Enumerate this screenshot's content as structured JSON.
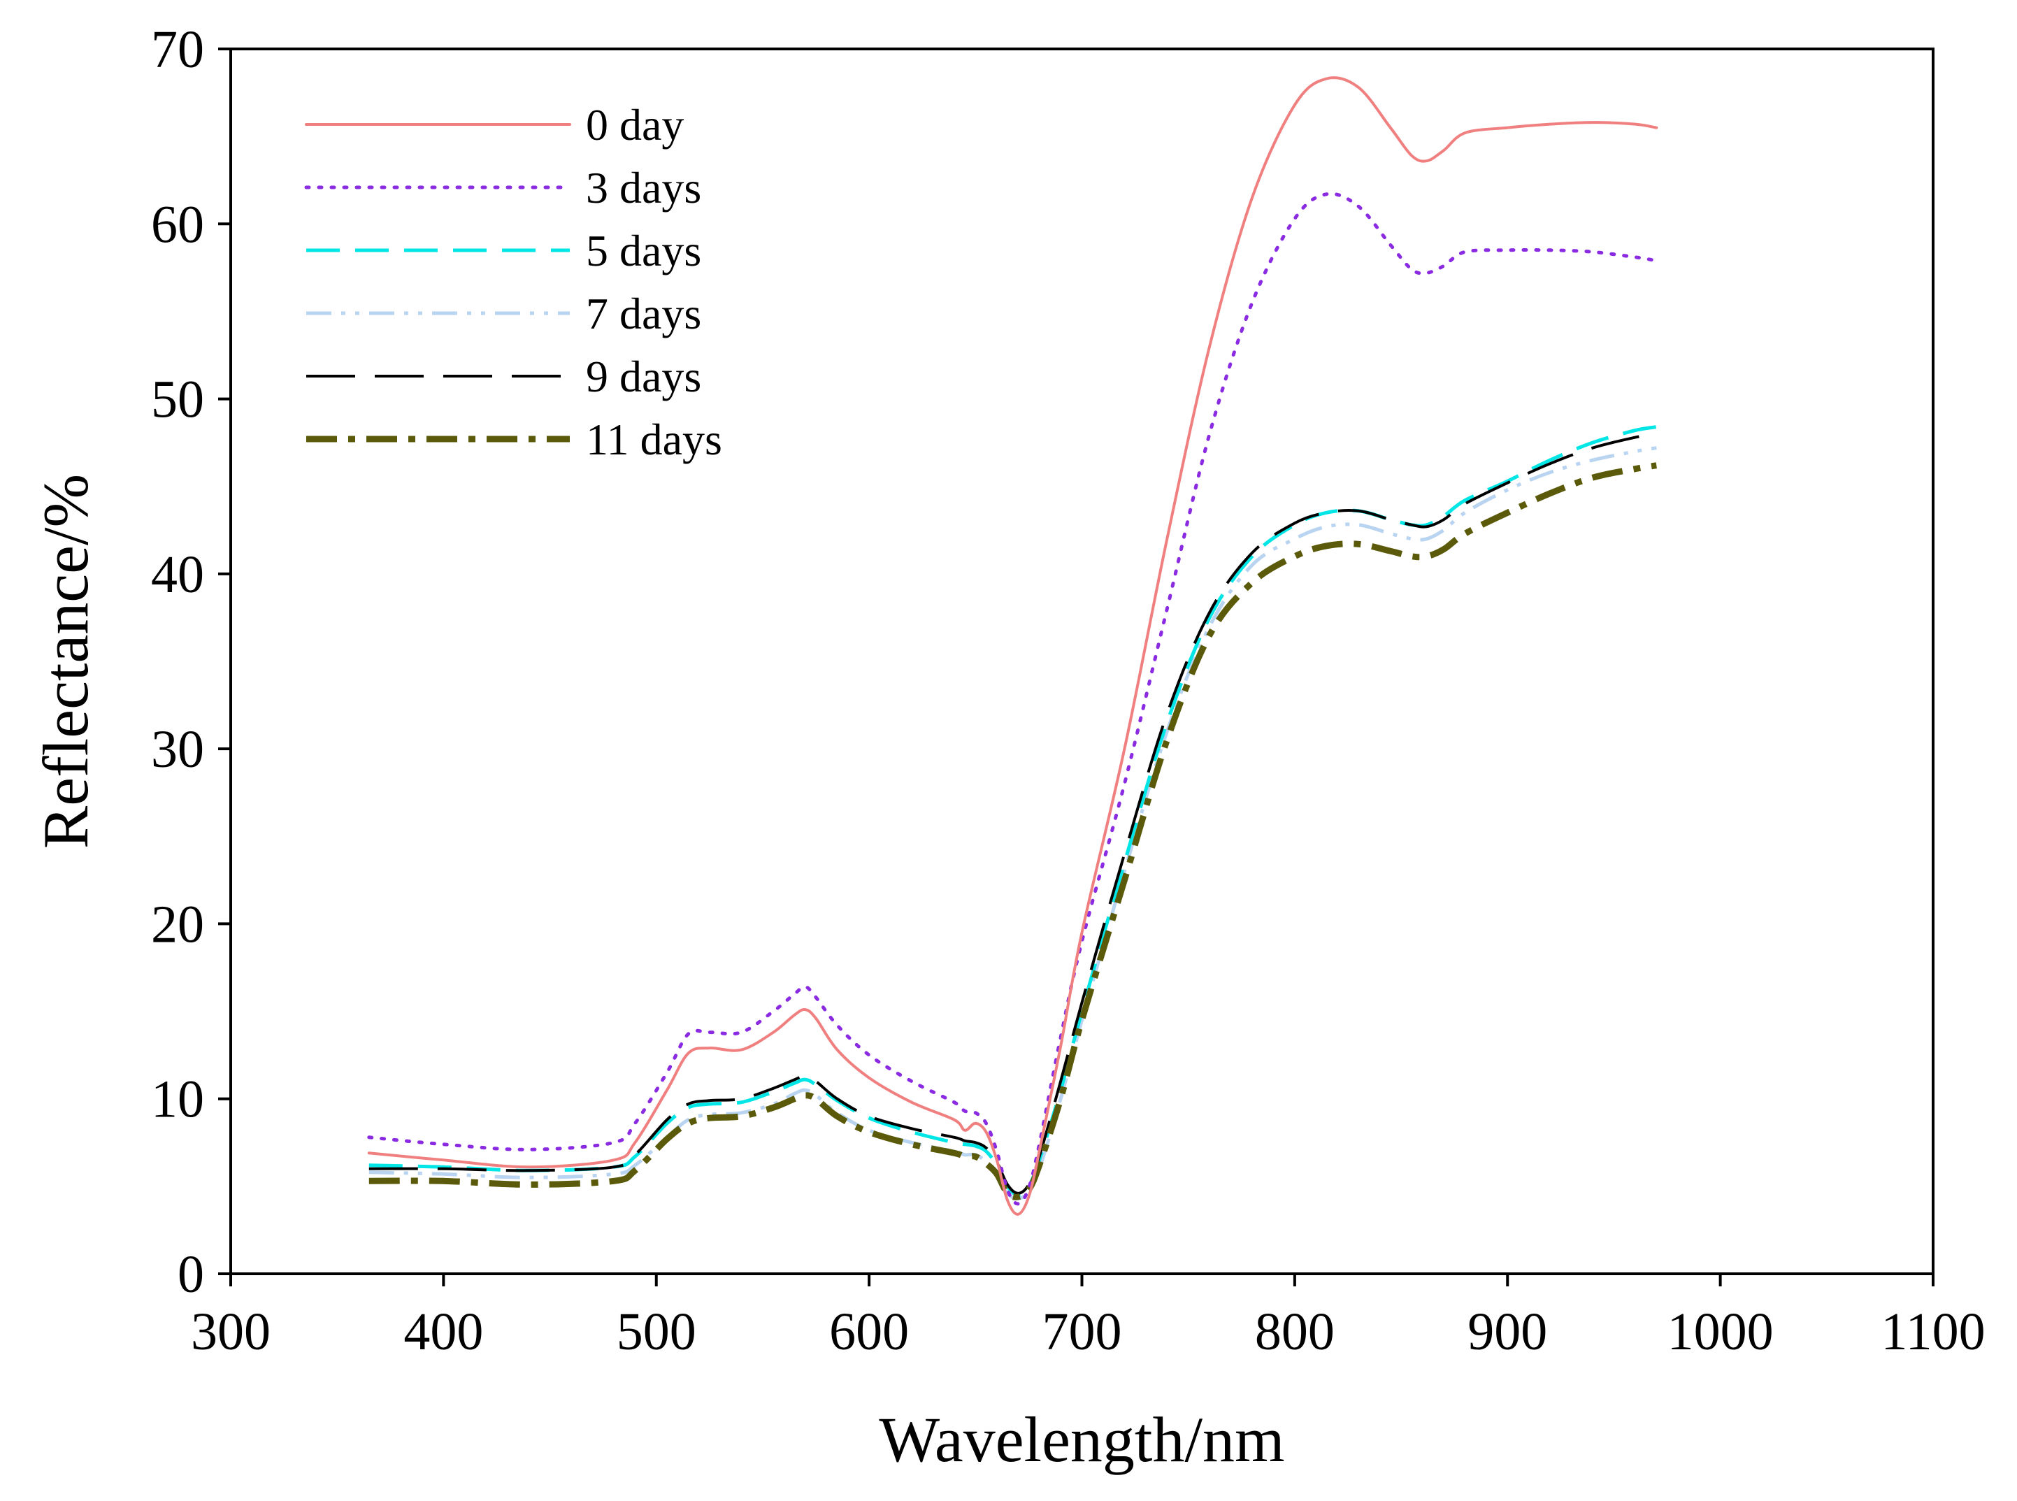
{
  "chart_data": {
    "type": "line",
    "title": "",
    "xlabel": "Wavelength/nm",
    "ylabel": "Reflectance/%",
    "xlim": [
      300,
      1100
    ],
    "ylim": [
      0,
      70
    ],
    "xticks": [
      300,
      400,
      500,
      600,
      700,
      800,
      900,
      1000,
      1100
    ],
    "yticks": [
      0,
      10,
      20,
      30,
      40,
      50,
      60,
      70
    ],
    "grid": false,
    "legend_position": "top-left",
    "x": [
      365,
      400,
      440,
      480,
      490,
      505,
      515,
      525,
      540,
      555,
      565,
      570,
      575,
      585,
      600,
      620,
      640,
      645,
      650,
      655,
      660,
      665,
      670,
      675,
      680,
      690,
      700,
      720,
      740,
      760,
      780,
      800,
      815,
      830,
      845,
      855,
      862,
      870,
      880,
      900,
      920,
      940,
      960,
      970
    ],
    "series": [
      {
        "name": "0 day",
        "color": "#f08080",
        "dash": "solid",
        "values": [
          6.9,
          6.5,
          6.1,
          6.5,
          7.5,
          10.5,
          12.6,
          12.9,
          12.8,
          13.8,
          14.8,
          15.1,
          14.6,
          12.8,
          11.2,
          9.8,
          8.8,
          8.2,
          8.6,
          8.1,
          6.5,
          4.2,
          3.4,
          4.4,
          7.0,
          13.0,
          19.5,
          30.0,
          42.0,
          53.0,
          61.5,
          66.8,
          68.3,
          67.8,
          65.5,
          63.9,
          63.6,
          64.2,
          65.2,
          65.5,
          65.7,
          65.8,
          65.7,
          65.5
        ],
        "label_color": "#000000"
      },
      {
        "name": "3 days",
        "color": "#8a2be2",
        "dash": "dotted",
        "values": [
          7.8,
          7.4,
          7.1,
          7.5,
          8.6,
          11.5,
          13.7,
          13.8,
          13.8,
          15.0,
          16.0,
          16.4,
          15.8,
          14.2,
          12.5,
          11.0,
          9.8,
          9.3,
          9.2,
          8.6,
          7.0,
          4.8,
          4.0,
          4.9,
          7.4,
          13.5,
          19.0,
          28.0,
          38.0,
          48.0,
          55.5,
          60.3,
          61.7,
          61.0,
          58.8,
          57.4,
          57.2,
          57.6,
          58.4,
          58.5,
          58.5,
          58.4,
          58.1,
          57.9
        ]
      },
      {
        "name": "5 days",
        "color": "#00e5e5",
        "dash": "dashed",
        "values": [
          6.2,
          6.1,
          5.9,
          6.1,
          6.7,
          8.6,
          9.5,
          9.7,
          9.8,
          10.4,
          10.9,
          11.1,
          10.8,
          9.9,
          8.9,
          8.1,
          7.5,
          7.4,
          7.3,
          7.0,
          6.2,
          5.0,
          4.5,
          5.0,
          6.5,
          10.5,
          15.0,
          23.5,
          31.5,
          37.5,
          41.0,
          42.8,
          43.5,
          43.6,
          43.1,
          42.8,
          42.8,
          43.3,
          44.2,
          45.3,
          46.5,
          47.5,
          48.2,
          48.4
        ]
      },
      {
        "name": "7 days",
        "color": "#b8d4f0",
        "dash": "dash-dot-dot",
        "values": [
          5.8,
          5.7,
          5.5,
          5.7,
          6.2,
          7.8,
          8.8,
          9.1,
          9.2,
          9.7,
          10.3,
          10.5,
          10.2,
          9.2,
          8.2,
          7.5,
          7.0,
          6.8,
          6.8,
          6.4,
          5.7,
          4.6,
          4.3,
          4.7,
          6.0,
          10.0,
          14.5,
          23.0,
          31.0,
          37.0,
          40.5,
          42.0,
          42.7,
          42.8,
          42.3,
          42.0,
          42.0,
          42.5,
          43.5,
          44.8,
          45.8,
          46.5,
          47.0,
          47.2
        ]
      },
      {
        "name": "9 days",
        "color": "#000000",
        "dash": "long-dash",
        "values": [
          6.0,
          6.0,
          5.9,
          6.1,
          6.8,
          8.8,
          9.7,
          9.9,
          10.0,
          10.6,
          11.1,
          11.3,
          11.0,
          10.0,
          9.0,
          8.3,
          7.8,
          7.6,
          7.5,
          7.2,
          6.4,
          5.1,
          4.6,
          5.1,
          6.7,
          11.0,
          15.5,
          24.0,
          32.0,
          37.8,
          41.2,
          42.9,
          43.5,
          43.6,
          43.1,
          42.8,
          42.7,
          43.1,
          44.0,
          45.2,
          46.3,
          47.2,
          47.8,
          48.0
        ]
      },
      {
        "name": "11 days",
        "color": "#5a5a0a",
        "dash": "dash-dot",
        "values": [
          5.3,
          5.3,
          5.1,
          5.3,
          5.9,
          7.7,
          8.6,
          8.9,
          9.0,
          9.5,
          10.0,
          10.2,
          10.0,
          9.0,
          8.1,
          7.4,
          6.9,
          6.7,
          6.7,
          6.3,
          5.7,
          4.6,
          4.4,
          4.8,
          6.2,
          10.0,
          14.5,
          22.5,
          30.5,
          36.5,
          39.5,
          41.0,
          41.6,
          41.7,
          41.3,
          41.0,
          41.0,
          41.4,
          42.3,
          43.5,
          44.6,
          45.5,
          46.0,
          46.2
        ]
      }
    ]
  }
}
